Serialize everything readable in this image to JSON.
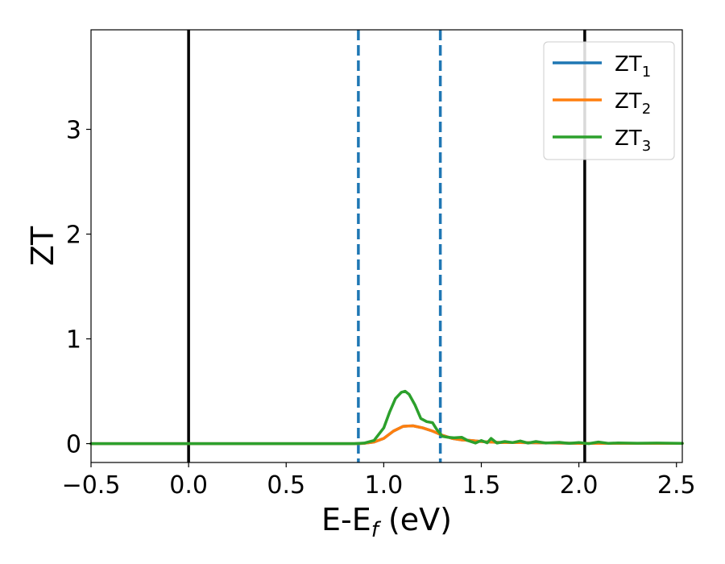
{
  "chart_data": {
    "type": "line",
    "xlabel": "E-E",
    "xlabel_sub": "f",
    "xlabel_unit": " (eV)",
    "ylabel": "ZT",
    "xlim": [
      -0.5,
      2.53
    ],
    "ylim": [
      -0.18,
      3.95
    ],
    "grid": false,
    "legend_position": "top-right",
    "xticks": [
      {
        "value": -0.5,
        "label": "−0.5"
      },
      {
        "value": 0.0,
        "label": "0.0"
      },
      {
        "value": 0.5,
        "label": "0.5"
      },
      {
        "value": 1.0,
        "label": "1.0"
      },
      {
        "value": 1.5,
        "label": "1.5"
      },
      {
        "value": 2.0,
        "label": "2.0"
      },
      {
        "value": 2.5,
        "label": "2.5"
      }
    ],
    "yticks": [
      {
        "value": 0,
        "label": "0"
      },
      {
        "value": 1,
        "label": "1"
      },
      {
        "value": 2,
        "label": "2"
      },
      {
        "value": 3,
        "label": "3"
      }
    ],
    "vlines": [
      {
        "x": 0.0,
        "color": "#000000",
        "style": "solid"
      },
      {
        "x": 2.03,
        "color": "#000000",
        "style": "solid"
      },
      {
        "x": 0.87,
        "color": "#1f77b4",
        "style": "dashed"
      },
      {
        "x": 1.29,
        "color": "#1f77b4",
        "style": "dashed"
      }
    ],
    "series": [
      {
        "name": "ZT",
        "subscript": "1",
        "color": "#1f77b4",
        "x": [
          -0.5,
          0.85,
          0.9,
          0.95,
          1.0,
          1.05,
          1.1,
          1.15,
          1.2,
          1.25,
          1.3,
          1.35,
          1.4,
          1.45,
          1.5,
          1.55,
          1.6,
          1.7,
          1.8,
          1.9,
          2.0,
          2.1,
          2.2,
          2.3,
          2.4,
          2.53
        ],
        "y": [
          0.0,
          0.0,
          0.003,
          0.015,
          0.05,
          0.12,
          0.165,
          0.17,
          0.15,
          0.12,
          0.08,
          0.05,
          0.035,
          0.03,
          0.02,
          0.015,
          0.01,
          0.01,
          0.008,
          0.005,
          0.003,
          0.003,
          0.002,
          0.002,
          0.002,
          0.002
        ]
      },
      {
        "name": "ZT",
        "subscript": "2",
        "color": "#ff7f0e",
        "x": [
          -0.5,
          0.85,
          0.9,
          0.95,
          1.0,
          1.05,
          1.1,
          1.15,
          1.2,
          1.25,
          1.3,
          1.35,
          1.4,
          1.45,
          1.5,
          1.55,
          1.6,
          1.7,
          1.8,
          1.9,
          2.0,
          2.1,
          2.2,
          2.3,
          2.4,
          2.53
        ],
        "y": [
          0.0,
          0.0,
          0.003,
          0.015,
          0.05,
          0.12,
          0.165,
          0.17,
          0.15,
          0.12,
          0.08,
          0.05,
          0.035,
          0.03,
          0.02,
          0.015,
          0.01,
          0.01,
          0.008,
          0.005,
          0.003,
          0.003,
          0.002,
          0.002,
          0.002,
          0.002
        ]
      },
      {
        "name": "ZT",
        "subscript": "3",
        "color": "#2ca02c",
        "x": [
          -0.5,
          0.85,
          0.9,
          0.95,
          1.0,
          1.03,
          1.06,
          1.09,
          1.11,
          1.13,
          1.16,
          1.19,
          1.22,
          1.25,
          1.27,
          1.3,
          1.33,
          1.36,
          1.4,
          1.43,
          1.47,
          1.5,
          1.53,
          1.55,
          1.58,
          1.62,
          1.66,
          1.7,
          1.74,
          1.78,
          1.83,
          1.9,
          1.95,
          2.0,
          2.05,
          2.1,
          2.15,
          2.2,
          2.3,
          2.4,
          2.53
        ],
        "y": [
          0.0,
          0.0,
          0.005,
          0.03,
          0.15,
          0.3,
          0.43,
          0.49,
          0.5,
          0.47,
          0.37,
          0.24,
          0.21,
          0.2,
          0.14,
          0.07,
          0.06,
          0.055,
          0.06,
          0.03,
          0.005,
          0.03,
          0.008,
          0.05,
          0.005,
          0.02,
          0.01,
          0.025,
          0.005,
          0.02,
          0.005,
          0.012,
          0.003,
          0.01,
          0.0,
          0.015,
          0.003,
          0.006,
          0.004,
          0.005,
          0.003
        ]
      }
    ]
  }
}
